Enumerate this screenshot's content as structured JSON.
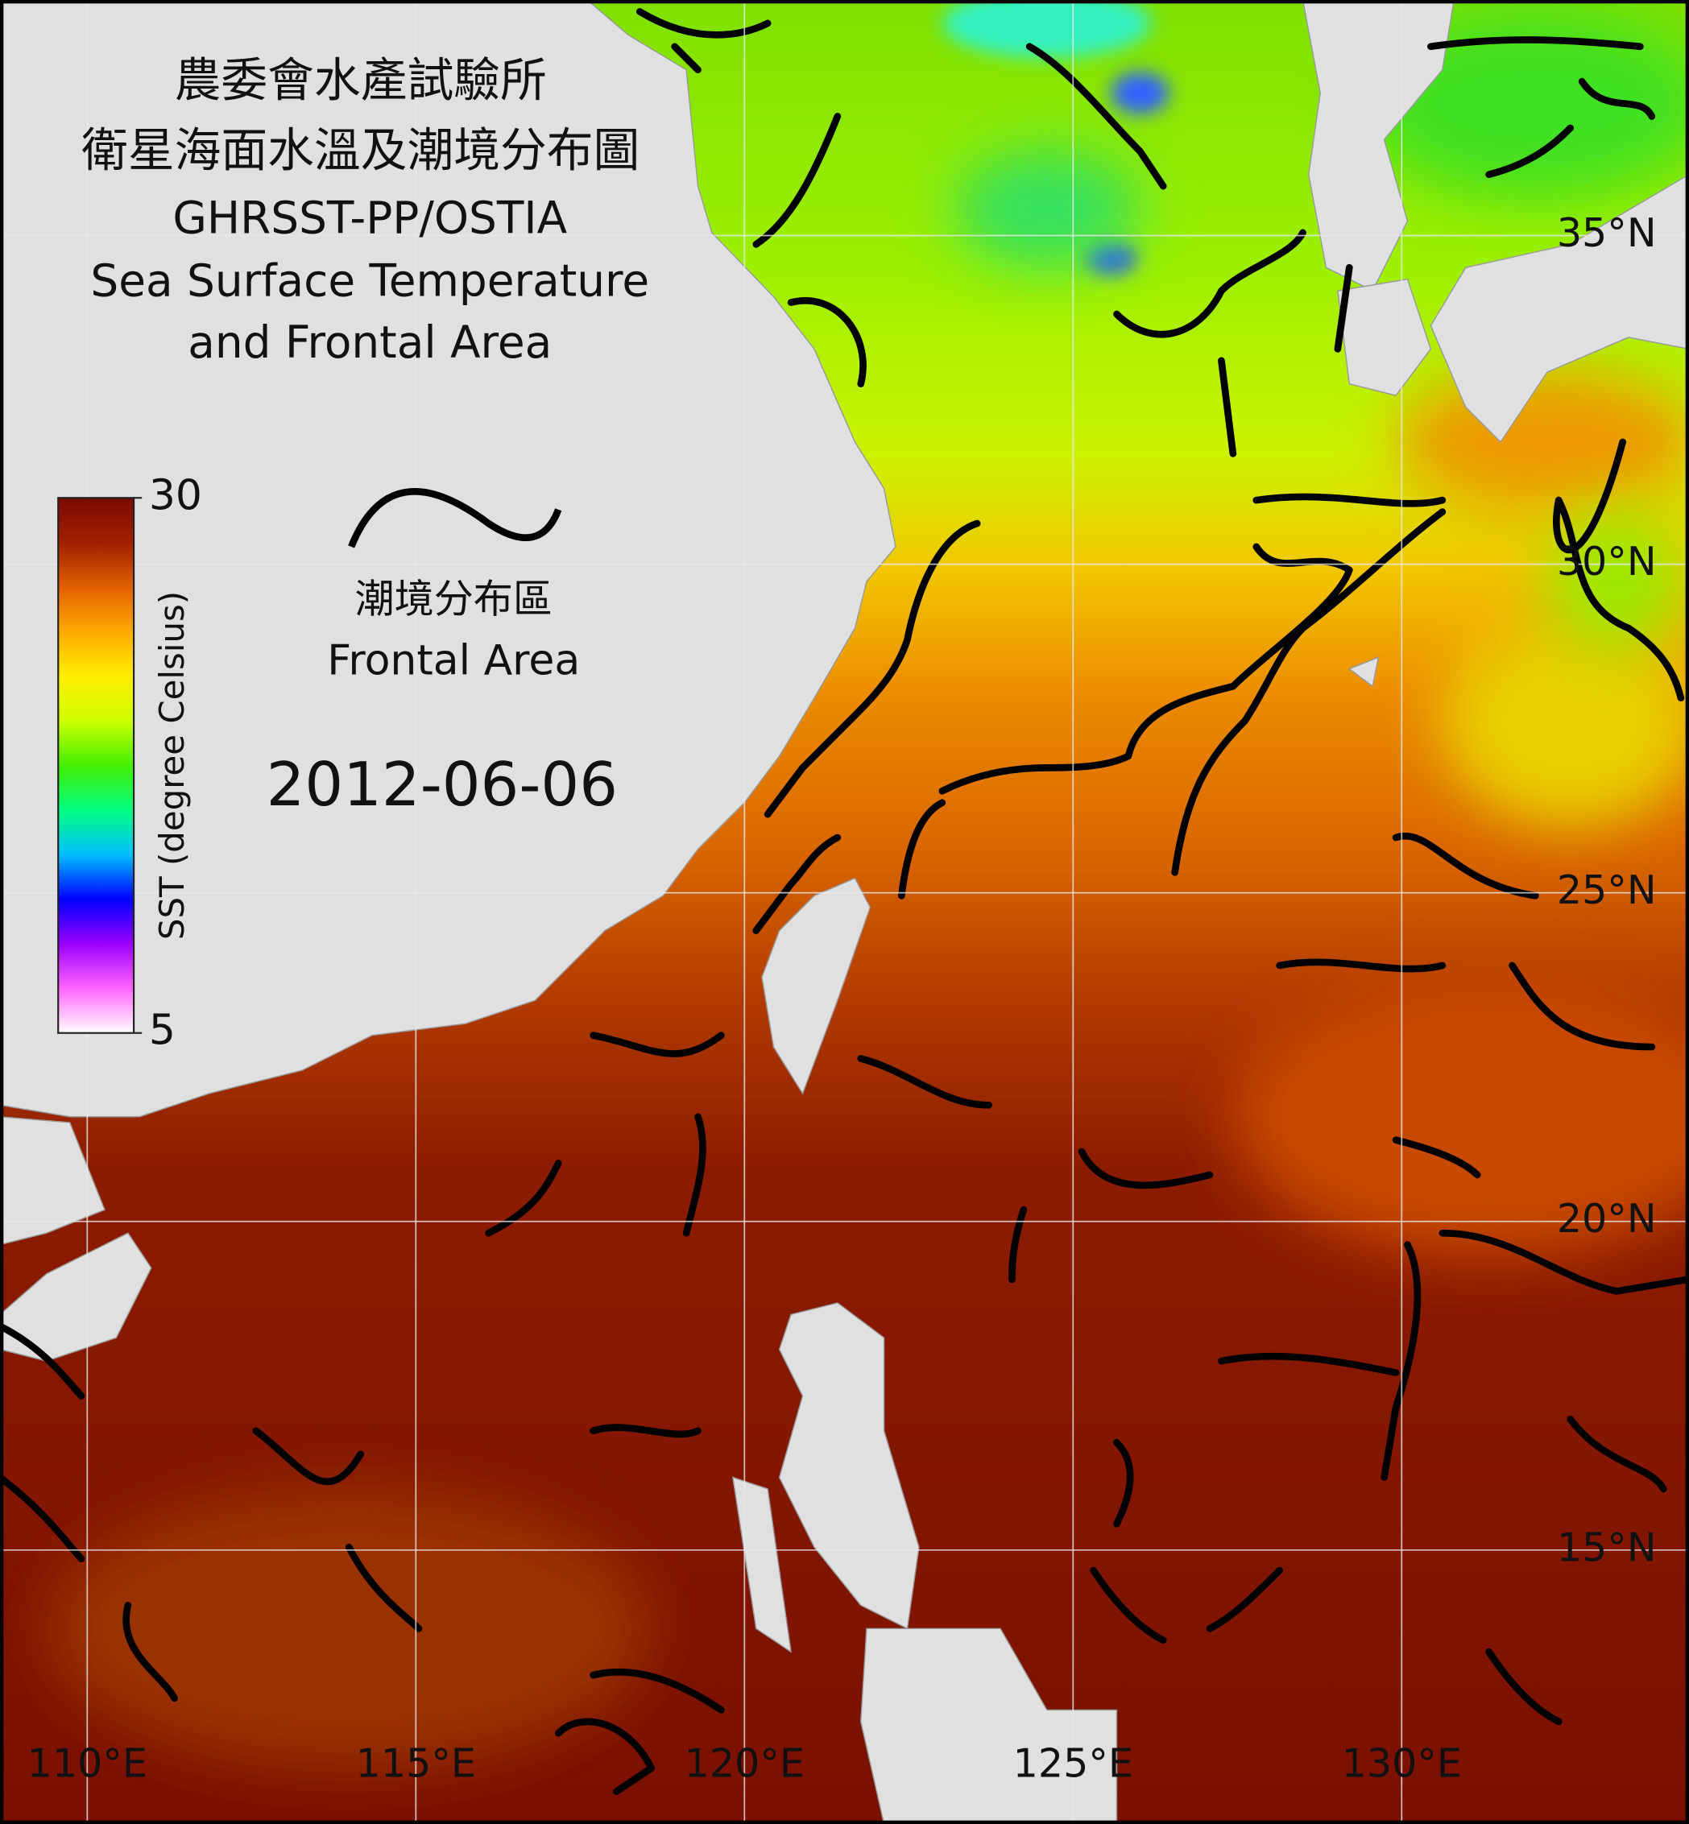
{
  "header": {
    "title": [
      "農委會水產試驗所",
      "衛星海面水溫及潮境分布圖",
      "GHRSST-PP/OSTIA",
      "Sea Surface Temperature",
      "and Frontal Area"
    ]
  },
  "colorbar": {
    "label": "SST (degree Celsius)",
    "range": [
      5,
      30
    ],
    "ticks": [
      5,
      30
    ],
    "colors": [
      "#ffffff",
      "#ff66ff",
      "#9900ff",
      "#0000ff",
      "#00bfff",
      "#00ff80",
      "#44ee00",
      "#ccff00",
      "#ffee00",
      "#ffaa00",
      "#e06000",
      "#a02000",
      "#7a0a00"
    ]
  },
  "frontal_legend": {
    "label_zh": "潮境分布區",
    "label_en": "Frontal Area"
  },
  "date": "2012-06-06",
  "longitude_labels": [
    {
      "value": 110,
      "label": "110°E"
    },
    {
      "value": 115,
      "label": "115°E"
    },
    {
      "value": 120,
      "label": "120°E"
    },
    {
      "value": 125,
      "label": "125°E"
    },
    {
      "value": 130,
      "label": "130°E"
    }
  ],
  "latitude_labels": [
    {
      "value": 35,
      "label": "35°N"
    },
    {
      "value": 30,
      "label": "30°N"
    },
    {
      "value": 25,
      "label": "25°N"
    },
    {
      "value": 20,
      "label": "20°N"
    },
    {
      "value": 15,
      "label": "15°N"
    }
  ]
}
